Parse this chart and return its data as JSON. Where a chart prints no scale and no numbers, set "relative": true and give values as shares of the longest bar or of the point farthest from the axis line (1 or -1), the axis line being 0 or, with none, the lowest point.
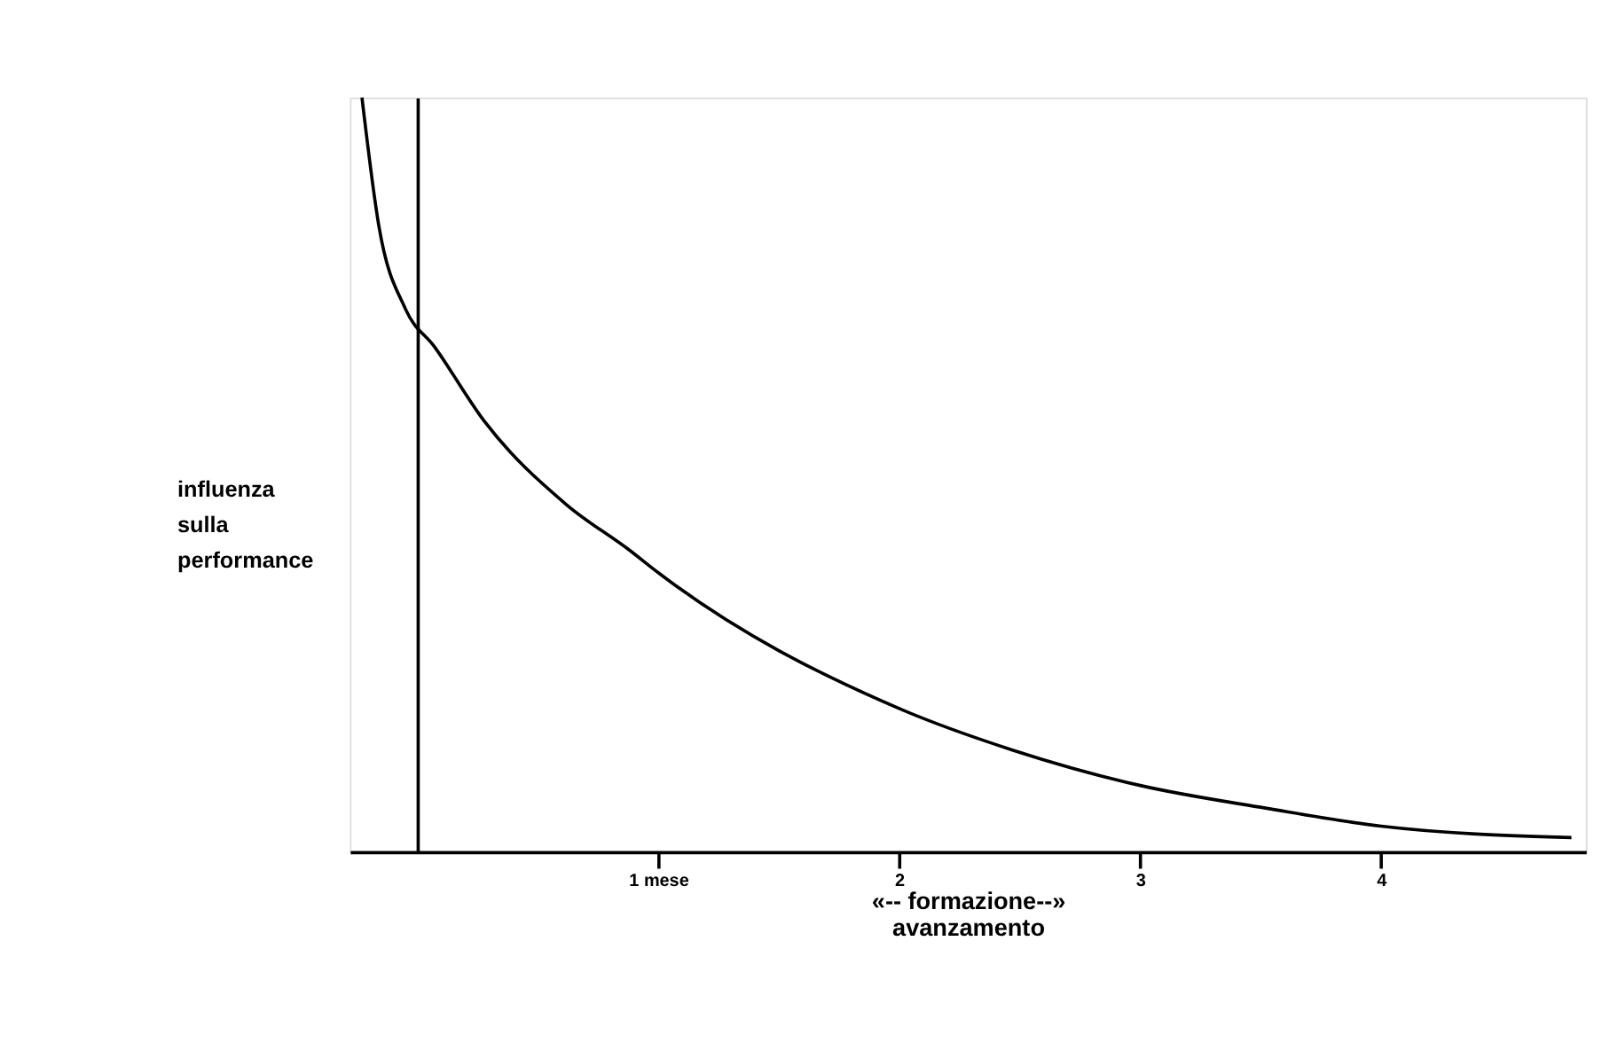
{
  "chart_data": {
    "type": "line",
    "relative": true,
    "xlabel": "«-- formazione--» avanzamento",
    "ylabel": "influenza sulla performance",
    "x": [
      -0.23,
      -0.16,
      -0.05,
      0.07,
      0.28,
      0.62,
      0.88,
      1.0,
      2.0,
      2.47,
      3.0,
      3.52,
      4.0,
      4.79
    ],
    "series": [
      {
        "color": "#000000",
        "values": [
          1.0,
          0.83,
          0.72,
          0.67,
          0.57,
          0.46,
          0.4,
          0.37,
          0.19,
          0.135,
          0.088,
          0.058,
          0.034,
          0.019
        ]
      }
    ],
    "xlim": [
      -0.28,
      4.85
    ],
    "xticks": [
      {
        "value": 1,
        "label": "1 mese"
      },
      2,
      3,
      4
    ],
    "grid": false,
    "marker": "none",
    "line_style": "solid"
  }
}
